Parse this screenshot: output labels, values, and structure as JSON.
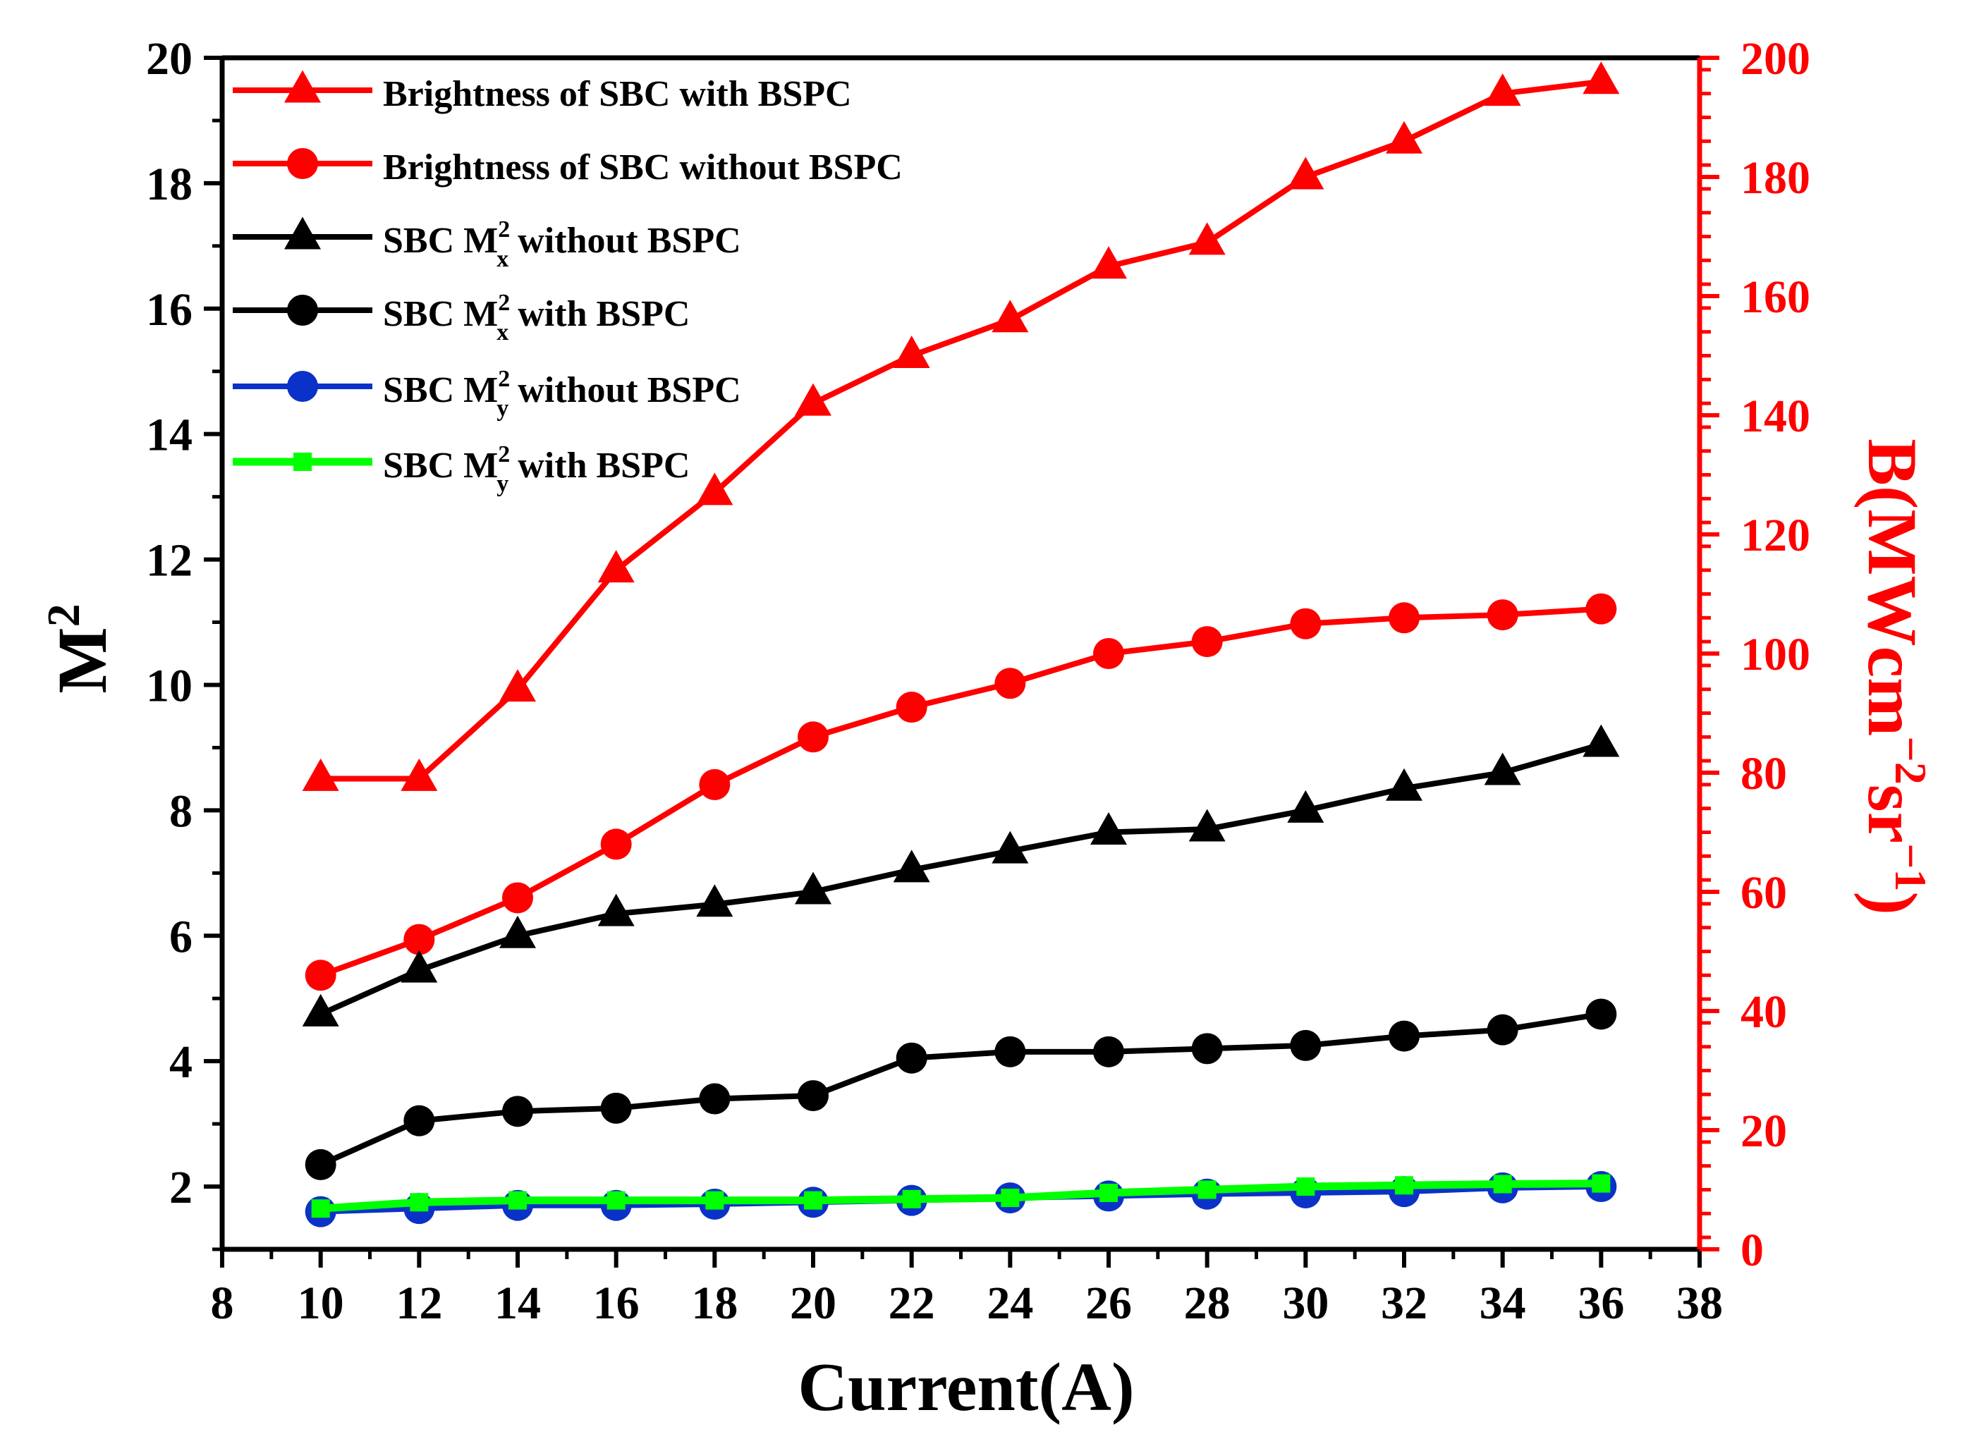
{
  "chart_data": {
    "type": "line",
    "x": [
      10,
      12,
      14,
      16,
      18,
      20,
      22,
      24,
      26,
      28,
      30,
      32,
      34,
      36
    ],
    "xlabel": "Current(A)",
    "xlim": [
      8,
      38
    ],
    "xticks": [
      8,
      10,
      12,
      14,
      16,
      18,
      20,
      22,
      24,
      26,
      28,
      30,
      32,
      34,
      36,
      38
    ],
    "ylabel_left": {
      "base": "M",
      "sup": "2"
    },
    "ylim_left": [
      1,
      20
    ],
    "yticks_left": [
      2,
      4,
      6,
      8,
      10,
      12,
      14,
      16,
      18,
      20
    ],
    "ylabel_right": {
      "p1": "B(MWcm",
      "sup1": "−2",
      "p2": "sr",
      "sup2": "−1",
      "p3": ")"
    },
    "ylim_right": [
      0,
      200
    ],
    "yticks_right": [
      0,
      20,
      40,
      60,
      80,
      100,
      120,
      140,
      160,
      180,
      200
    ],
    "colors": {
      "red": "#ff0000",
      "black": "#000000",
      "blue": "#0a32c8",
      "green": "#00ff00"
    },
    "series": [
      {
        "id": "bright_with",
        "axis": "right",
        "color": "#ff0000",
        "marker": "triangle",
        "legend": {
          "text": "Brightness of SBC with BSPC"
        },
        "values": [
          79,
          79,
          94,
          114,
          127,
          142,
          150,
          156,
          165,
          169,
          180,
          186,
          194,
          196
        ]
      },
      {
        "id": "bright_without",
        "axis": "right",
        "color": "#ff0000",
        "marker": "circle",
        "legend": {
          "text": "Brightness of SBC without BSPC"
        },
        "values": [
          46,
          52,
          59,
          68,
          78,
          86,
          91,
          95,
          100,
          102,
          105,
          106,
          106.5,
          107.5
        ]
      },
      {
        "id": "mx_without",
        "axis": "left",
        "color": "#000000",
        "marker": "triangle",
        "legend": {
          "pre": "SBC M",
          "sup": "2",
          "sub": "x",
          "post": " without BSPC"
        },
        "values": [
          4.75,
          5.45,
          6.0,
          6.35,
          6.5,
          6.7,
          7.05,
          7.35,
          7.65,
          7.7,
          8.0,
          8.35,
          8.6,
          9.05
        ]
      },
      {
        "id": "mx_with",
        "axis": "left",
        "color": "#000000",
        "marker": "circle",
        "legend": {
          "pre": "SBC M",
          "sup": "2",
          "sub": "x",
          "post": " with BSPC"
        },
        "values": [
          2.35,
          3.05,
          3.2,
          3.25,
          3.4,
          3.45,
          4.05,
          4.15,
          4.15,
          4.2,
          4.25,
          4.4,
          4.5,
          4.75
        ]
      },
      {
        "id": "my_without",
        "axis": "left",
        "color": "#0a32c8",
        "marker": "circle",
        "legend": {
          "pre": "SBC M",
          "sup": "2",
          "sub": "y",
          "post": " without BSPC"
        },
        "values": [
          1.6,
          1.65,
          1.7,
          1.7,
          1.72,
          1.75,
          1.78,
          1.82,
          1.85,
          1.88,
          1.9,
          1.92,
          1.98,
          2.0
        ]
      },
      {
        "id": "my_with",
        "axis": "left",
        "color": "#00ff00",
        "marker": "square",
        "legend": {
          "pre": "SBC M",
          "sup": "2",
          "sub": "y",
          "post": " with BSPC"
        },
        "values": [
          1.65,
          1.75,
          1.78,
          1.78,
          1.78,
          1.78,
          1.8,
          1.82,
          1.9,
          1.95,
          2.0,
          2.02,
          2.04,
          2.05
        ]
      }
    ]
  }
}
